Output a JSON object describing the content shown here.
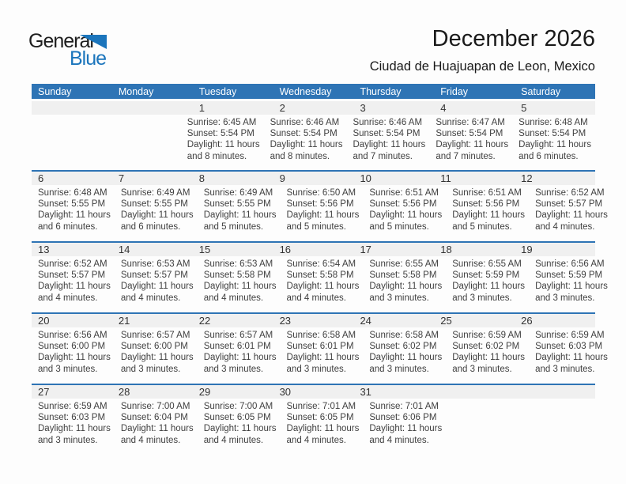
{
  "logo": {
    "text_top": "General",
    "text_bottom": "Blue"
  },
  "header": {
    "title": "December 2026",
    "subtitle": "Ciudad de Huajuapan de Leon, Mexico"
  },
  "weekdays": [
    "Sunday",
    "Monday",
    "Tuesday",
    "Wednesday",
    "Thursday",
    "Friday",
    "Saturday"
  ],
  "colors": {
    "header_bg": "#2e74b5",
    "week_border": "#2e74b5",
    "number_band_bg": "#f0f0f0",
    "logo_blue": "#1b75bc",
    "text_dark": "#3f3f3f"
  },
  "calendar": {
    "weeks": [
      [
        null,
        null,
        {
          "day": "1",
          "lines": [
            "Sunrise: 6:45 AM",
            "Sunset: 5:54 PM",
            "Daylight: 11 hours",
            "and 8 minutes."
          ]
        },
        {
          "day": "2",
          "lines": [
            "Sunrise: 6:46 AM",
            "Sunset: 5:54 PM",
            "Daylight: 11 hours",
            "and 8 minutes."
          ]
        },
        {
          "day": "3",
          "lines": [
            "Sunrise: 6:46 AM",
            "Sunset: 5:54 PM",
            "Daylight: 11 hours",
            "and 7 minutes."
          ]
        },
        {
          "day": "4",
          "lines": [
            "Sunrise: 6:47 AM",
            "Sunset: 5:54 PM",
            "Daylight: 11 hours",
            "and 7 minutes."
          ]
        },
        {
          "day": "5",
          "lines": [
            "Sunrise: 6:48 AM",
            "Sunset: 5:54 PM",
            "Daylight: 11 hours",
            "and 6 minutes."
          ]
        }
      ],
      [
        {
          "day": "6",
          "lines": [
            "Sunrise: 6:48 AM",
            "Sunset: 5:55 PM",
            "Daylight: 11 hours",
            "and 6 minutes."
          ]
        },
        {
          "day": "7",
          "lines": [
            "Sunrise: 6:49 AM",
            "Sunset: 5:55 PM",
            "Daylight: 11 hours",
            "and 6 minutes."
          ]
        },
        {
          "day": "8",
          "lines": [
            "Sunrise: 6:49 AM",
            "Sunset: 5:55 PM",
            "Daylight: 11 hours",
            "and 5 minutes."
          ]
        },
        {
          "day": "9",
          "lines": [
            "Sunrise: 6:50 AM",
            "Sunset: 5:56 PM",
            "Daylight: 11 hours",
            "and 5 minutes."
          ]
        },
        {
          "day": "10",
          "lines": [
            "Sunrise: 6:51 AM",
            "Sunset: 5:56 PM",
            "Daylight: 11 hours",
            "and 5 minutes."
          ]
        },
        {
          "day": "11",
          "lines": [
            "Sunrise: 6:51 AM",
            "Sunset: 5:56 PM",
            "Daylight: 11 hours",
            "and 5 minutes."
          ]
        },
        {
          "day": "12",
          "lines": [
            "Sunrise: 6:52 AM",
            "Sunset: 5:57 PM",
            "Daylight: 11 hours",
            "and 4 minutes."
          ]
        }
      ],
      [
        {
          "day": "13",
          "lines": [
            "Sunrise: 6:52 AM",
            "Sunset: 5:57 PM",
            "Daylight: 11 hours",
            "and 4 minutes."
          ]
        },
        {
          "day": "14",
          "lines": [
            "Sunrise: 6:53 AM",
            "Sunset: 5:57 PM",
            "Daylight: 11 hours",
            "and 4 minutes."
          ]
        },
        {
          "day": "15",
          "lines": [
            "Sunrise: 6:53 AM",
            "Sunset: 5:58 PM",
            "Daylight: 11 hours",
            "and 4 minutes."
          ]
        },
        {
          "day": "16",
          "lines": [
            "Sunrise: 6:54 AM",
            "Sunset: 5:58 PM",
            "Daylight: 11 hours",
            "and 4 minutes."
          ]
        },
        {
          "day": "17",
          "lines": [
            "Sunrise: 6:55 AM",
            "Sunset: 5:58 PM",
            "Daylight: 11 hours",
            "and 3 minutes."
          ]
        },
        {
          "day": "18",
          "lines": [
            "Sunrise: 6:55 AM",
            "Sunset: 5:59 PM",
            "Daylight: 11 hours",
            "and 3 minutes."
          ]
        },
        {
          "day": "19",
          "lines": [
            "Sunrise: 6:56 AM",
            "Sunset: 5:59 PM",
            "Daylight: 11 hours",
            "and 3 minutes."
          ]
        }
      ],
      [
        {
          "day": "20",
          "lines": [
            "Sunrise: 6:56 AM",
            "Sunset: 6:00 PM",
            "Daylight: 11 hours",
            "and 3 minutes."
          ]
        },
        {
          "day": "21",
          "lines": [
            "Sunrise: 6:57 AM",
            "Sunset: 6:00 PM",
            "Daylight: 11 hours",
            "and 3 minutes."
          ]
        },
        {
          "day": "22",
          "lines": [
            "Sunrise: 6:57 AM",
            "Sunset: 6:01 PM",
            "Daylight: 11 hours",
            "and 3 minutes."
          ]
        },
        {
          "day": "23",
          "lines": [
            "Sunrise: 6:58 AM",
            "Sunset: 6:01 PM",
            "Daylight: 11 hours",
            "and 3 minutes."
          ]
        },
        {
          "day": "24",
          "lines": [
            "Sunrise: 6:58 AM",
            "Sunset: 6:02 PM",
            "Daylight: 11 hours",
            "and 3 minutes."
          ]
        },
        {
          "day": "25",
          "lines": [
            "Sunrise: 6:59 AM",
            "Sunset: 6:02 PM",
            "Daylight: 11 hours",
            "and 3 minutes."
          ]
        },
        {
          "day": "26",
          "lines": [
            "Sunrise: 6:59 AM",
            "Sunset: 6:03 PM",
            "Daylight: 11 hours",
            "and 3 minutes."
          ]
        }
      ],
      [
        {
          "day": "27",
          "lines": [
            "Sunrise: 6:59 AM",
            "Sunset: 6:03 PM",
            "Daylight: 11 hours",
            "and 3 minutes."
          ]
        },
        {
          "day": "28",
          "lines": [
            "Sunrise: 7:00 AM",
            "Sunset: 6:04 PM",
            "Daylight: 11 hours",
            "and 4 minutes."
          ]
        },
        {
          "day": "29",
          "lines": [
            "Sunrise: 7:00 AM",
            "Sunset: 6:05 PM",
            "Daylight: 11 hours",
            "and 4 minutes."
          ]
        },
        {
          "day": "30",
          "lines": [
            "Sunrise: 7:01 AM",
            "Sunset: 6:05 PM",
            "Daylight: 11 hours",
            "and 4 minutes."
          ]
        },
        {
          "day": "31",
          "lines": [
            "Sunrise: 7:01 AM",
            "Sunset: 6:06 PM",
            "Daylight: 11 hours",
            "and 4 minutes."
          ]
        },
        null,
        null
      ]
    ]
  }
}
